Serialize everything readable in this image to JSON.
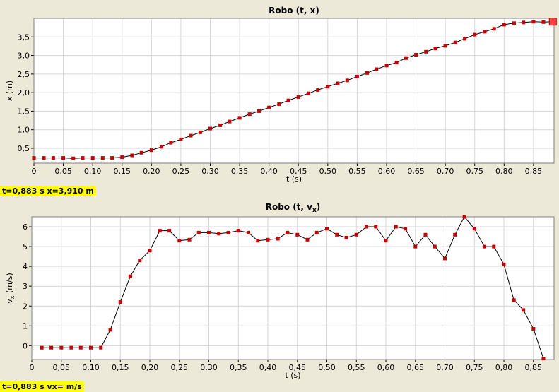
{
  "chart_data": [
    {
      "type": "line",
      "title": "Robo (t, x)",
      "xlabel": "t (s)",
      "ylabel": "x (m)",
      "xlim": [
        0,
        0.885
      ],
      "ylim": [
        0.1,
        4.0
      ],
      "xticks": [
        "0",
        "0,05",
        "0,10",
        "0,15",
        "0,20",
        "0,25",
        "0,30",
        "0,35",
        "0,40",
        "0,45",
        "0,50",
        "0,55",
        "0,60",
        "0,65",
        "0,70",
        "0,75",
        "0,80",
        "0,85"
      ],
      "yticks": [
        "0,5",
        "1,0",
        "1,5",
        "2,0",
        "2,5",
        "3,0",
        "3,5"
      ],
      "grid": true,
      "colors": {
        "line": "#000000",
        "marker": "#cc0000",
        "marker_highlight": "#ff4040"
      },
      "series": [
        {
          "x": [
            0.0,
            0.017,
            0.033,
            0.05,
            0.067,
            0.083,
            0.1,
            0.117,
            0.133,
            0.15,
            0.167,
            0.183,
            0.2,
            0.217,
            0.233,
            0.25,
            0.267,
            0.283,
            0.3,
            0.317,
            0.333,
            0.35,
            0.367,
            0.383,
            0.4,
            0.417,
            0.433,
            0.45,
            0.467,
            0.483,
            0.5,
            0.517,
            0.533,
            0.55,
            0.567,
            0.583,
            0.6,
            0.617,
            0.633,
            0.65,
            0.667,
            0.683,
            0.7,
            0.717,
            0.733,
            0.75,
            0.767,
            0.783,
            0.8,
            0.817,
            0.833,
            0.85,
            0.867,
            0.883
          ],
          "values": [
            0.24,
            0.24,
            0.24,
            0.24,
            0.23,
            0.24,
            0.24,
            0.24,
            0.24,
            0.26,
            0.31,
            0.38,
            0.45,
            0.54,
            0.65,
            0.74,
            0.84,
            0.93,
            1.03,
            1.12,
            1.22,
            1.32,
            1.42,
            1.5,
            1.6,
            1.69,
            1.79,
            1.88,
            1.98,
            2.07,
            2.16,
            2.25,
            2.33,
            2.43,
            2.53,
            2.63,
            2.73,
            2.81,
            2.93,
            3.02,
            3.1,
            3.19,
            3.26,
            3.35,
            3.45,
            3.56,
            3.64,
            3.72,
            3.83,
            3.87,
            3.89,
            3.91,
            3.9,
            3.91
          ]
        }
      ]
    },
    {
      "type": "line",
      "title": "Robo (t, v",
      "title_sub": "x",
      "title_end": ")",
      "xlabel": "t (s)",
      "ylabel": "v",
      "ylabel_sub": "x",
      "ylabel_end": " (m/s)",
      "xlim": [
        0,
        0.885
      ],
      "ylim": [
        -0.7,
        6.5
      ],
      "xticks": [
        "0",
        "0,05",
        "0,10",
        "0,15",
        "0,20",
        "0,25",
        "0,30",
        "0,35",
        "0,40",
        "0,45",
        "0,50",
        "0,55",
        "0,60",
        "0,65",
        "0,70",
        "0,75",
        "0,80",
        "0,85"
      ],
      "yticks": [
        "0",
        "1",
        "2",
        "3",
        "4",
        "5",
        "6"
      ],
      "grid": true,
      "colors": {
        "line": "#000000",
        "marker": "#cc0000"
      },
      "series": [
        {
          "x": [
            0.017,
            0.033,
            0.05,
            0.067,
            0.083,
            0.1,
            0.117,
            0.133,
            0.15,
            0.167,
            0.183,
            0.2,
            0.217,
            0.233,
            0.25,
            0.267,
            0.283,
            0.3,
            0.317,
            0.333,
            0.35,
            0.367,
            0.383,
            0.4,
            0.417,
            0.433,
            0.45,
            0.467,
            0.483,
            0.5,
            0.517,
            0.533,
            0.55,
            0.567,
            0.583,
            0.6,
            0.617,
            0.633,
            0.65,
            0.667,
            0.683,
            0.7,
            0.717,
            0.733,
            0.75,
            0.767,
            0.783,
            0.8,
            0.817,
            0.833,
            0.85,
            0.867
          ],
          "values": [
            -0.1,
            -0.1,
            -0.1,
            -0.1,
            -0.1,
            -0.1,
            -0.1,
            0.8,
            2.2,
            3.5,
            4.3,
            4.8,
            5.8,
            5.8,
            5.3,
            5.35,
            5.7,
            5.7,
            5.65,
            5.7,
            5.8,
            5.7,
            5.3,
            5.35,
            5.4,
            5.7,
            5.6,
            5.35,
            5.7,
            5.9,
            5.6,
            5.45,
            5.6,
            6.0,
            6.0,
            5.3,
            6.0,
            5.9,
            5.0,
            5.6,
            5.0,
            4.4,
            5.6,
            6.5,
            5.9,
            5.0,
            5.0,
            4.1,
            2.3,
            1.8,
            0.85,
            -0.65
          ]
        }
      ]
    }
  ],
  "readouts": {
    "top": "t=0,883 s  x=3,910 m",
    "bottom": "t=0,883 s  vx= m/s"
  }
}
